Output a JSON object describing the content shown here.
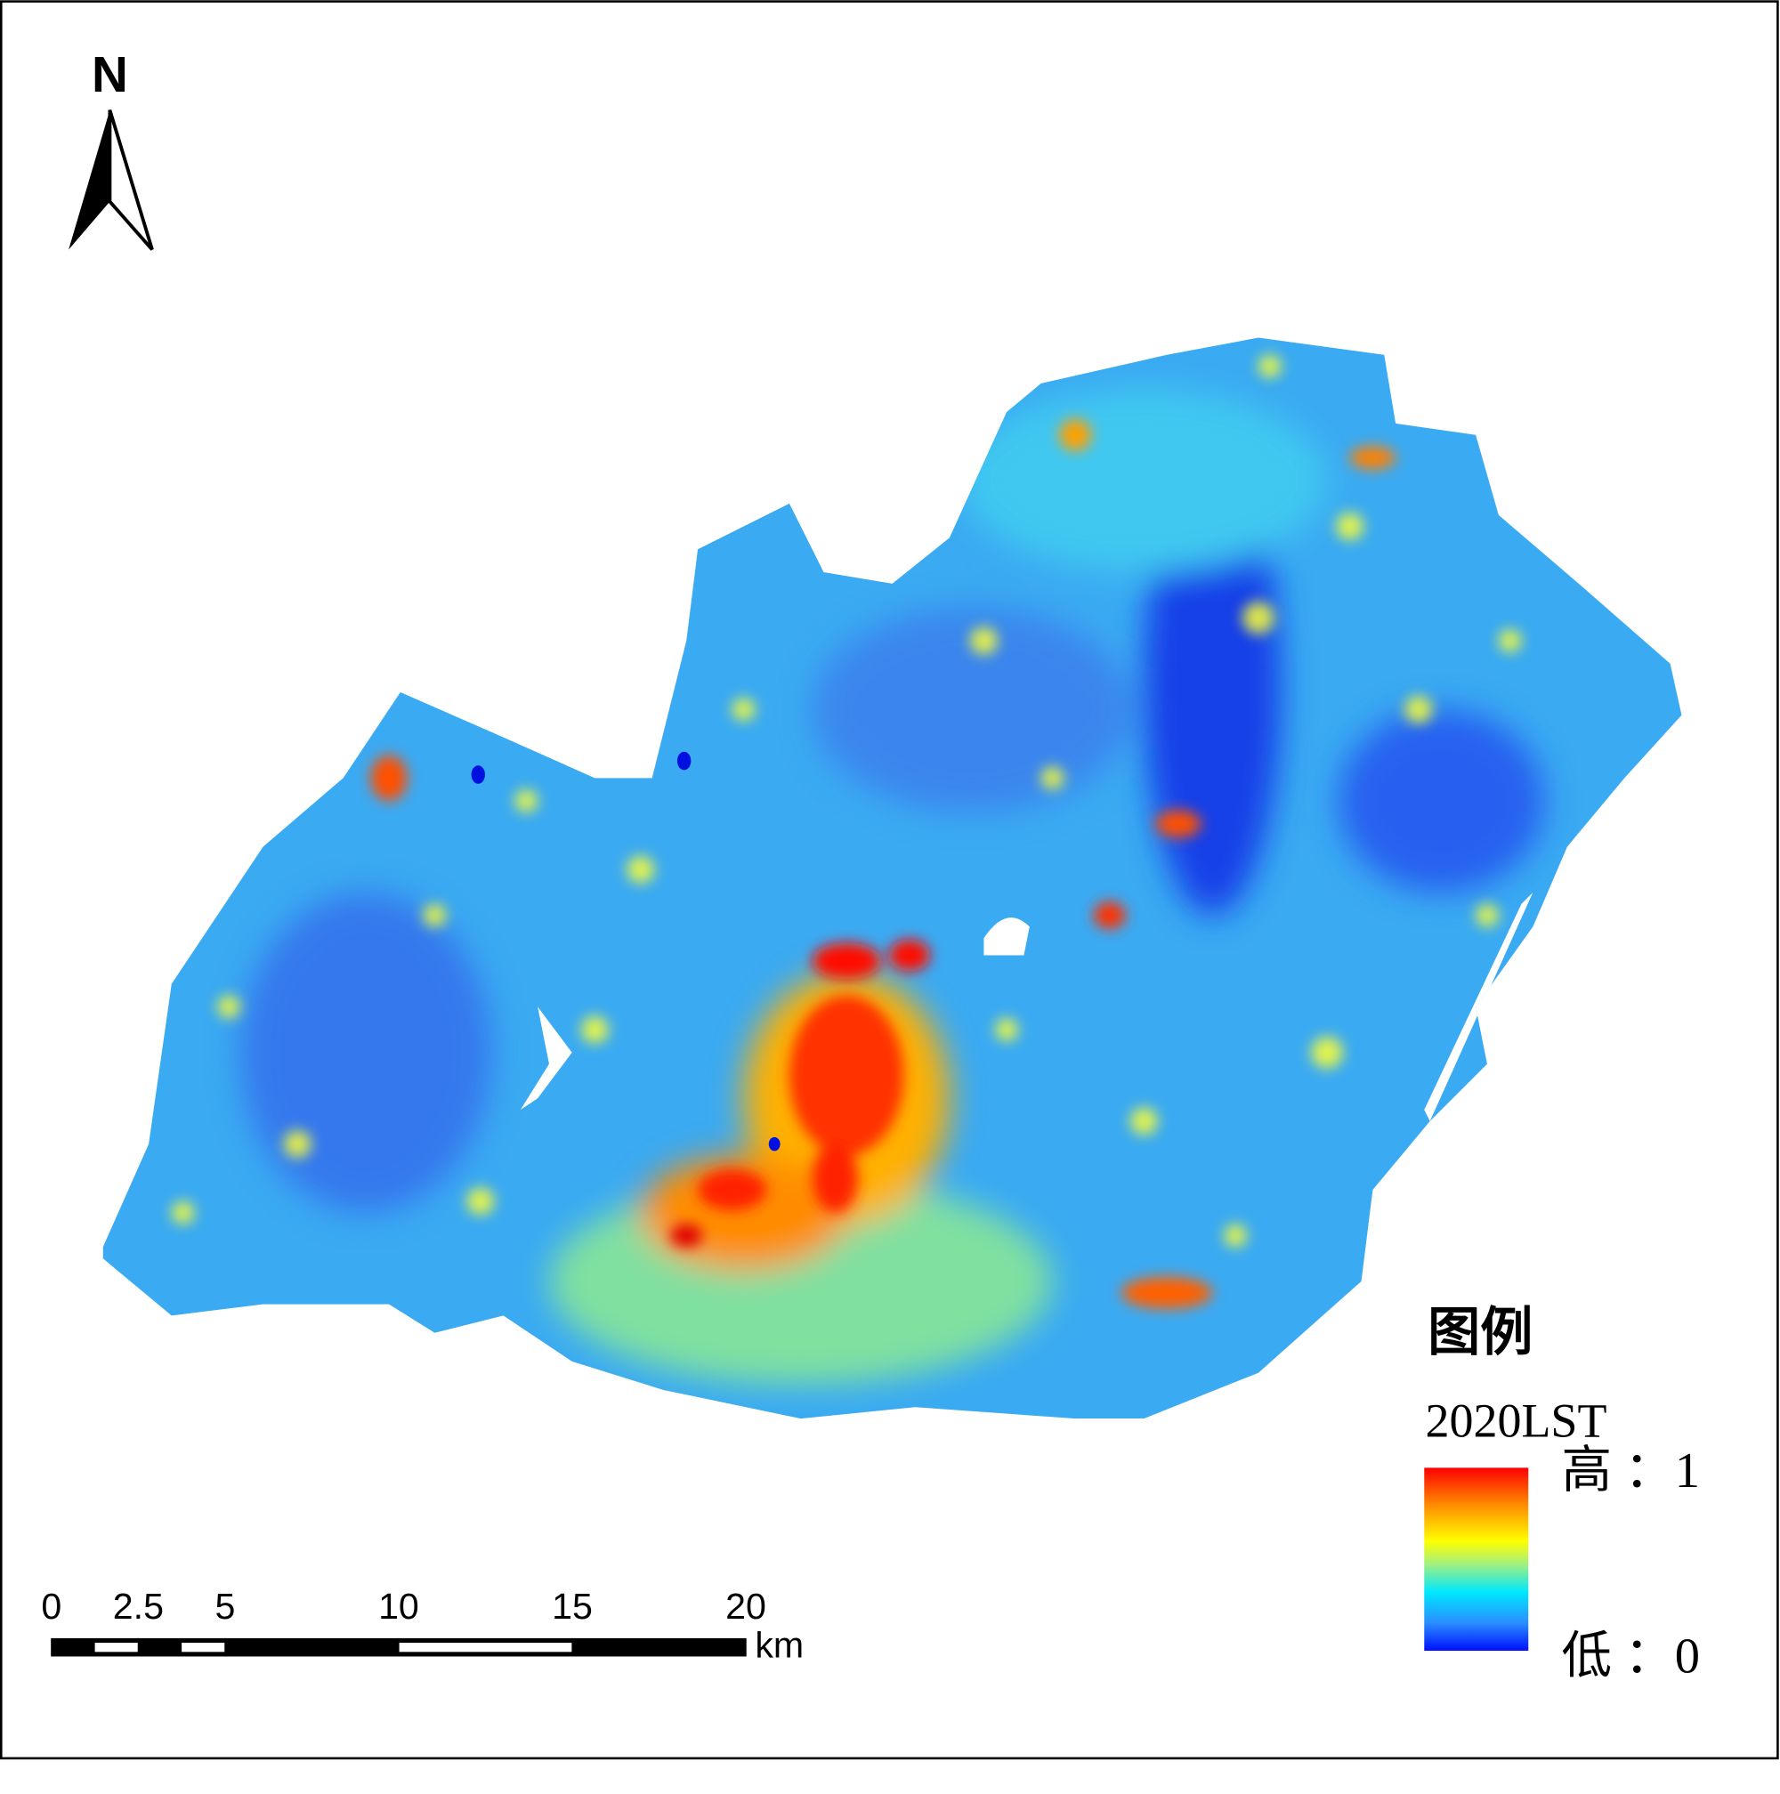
{
  "north": "N",
  "legend": {
    "title": "图例",
    "layer": "2020LST",
    "high": "高 ：1",
    "low": "低 ：0"
  },
  "scale_bar": {
    "ticks": [
      0,
      2.5,
      5,
      10,
      15,
      20
    ],
    "unit": "km"
  }
}
